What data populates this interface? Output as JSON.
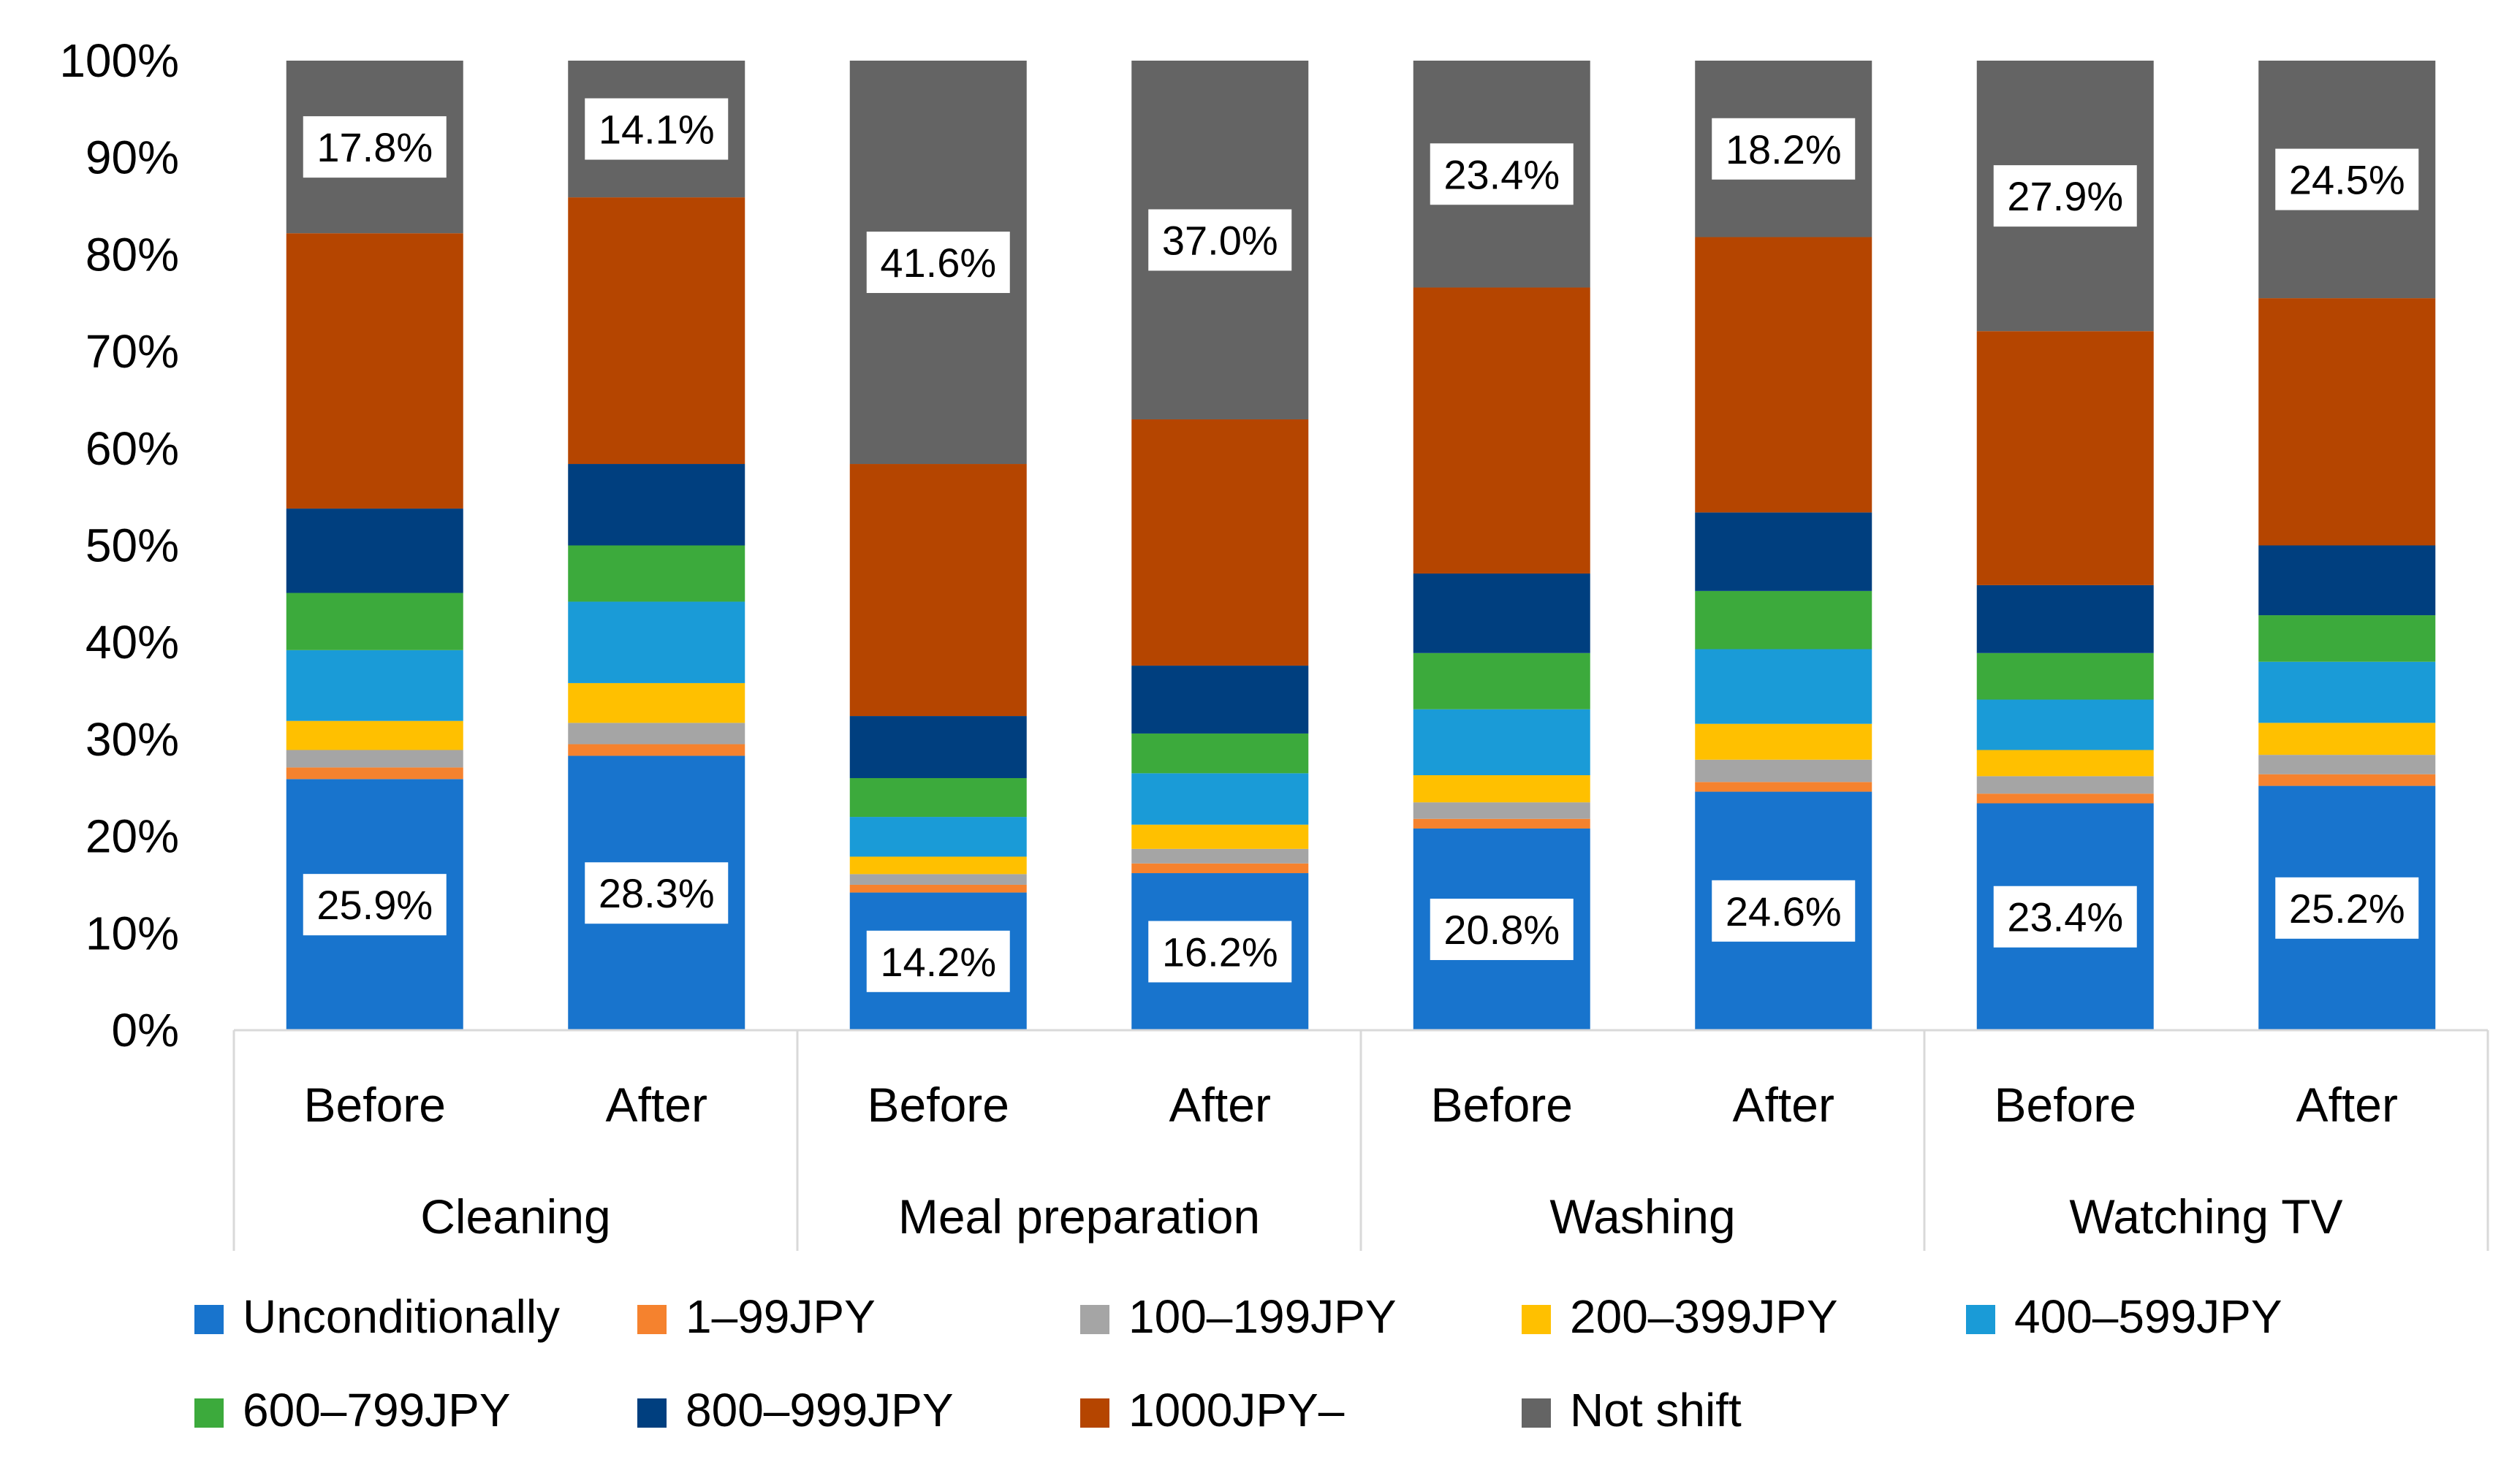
{
  "chart_data": {
    "type": "bar",
    "stacked": true,
    "normalized": true,
    "title": "",
    "xlabel": "",
    "ylabel": "",
    "ylim": [
      0,
      100
    ],
    "yticks": [
      "0%",
      "10%",
      "20%",
      "30%",
      "40%",
      "50%",
      "60%",
      "70%",
      "80%",
      "90%",
      "100%"
    ],
    "groups": [
      {
        "label": "Cleaning",
        "categories": [
          "Before",
          "After"
        ]
      },
      {
        "label": "Meal preparation",
        "categories": [
          "Before",
          "After"
        ]
      },
      {
        "label": "Washing",
        "categories": [
          "Before",
          "After"
        ]
      },
      {
        "label": "Watching TV",
        "categories": [
          "Before",
          "After"
        ]
      }
    ],
    "categories": [
      "Before",
      "After",
      "Before",
      "After",
      "Before",
      "After",
      "Before",
      "After"
    ],
    "series": [
      {
        "name": "Unconditionally",
        "color": "#1874CD",
        "values": [
          25.9,
          28.3,
          14.2,
          16.2,
          20.8,
          24.6,
          23.4,
          25.2
        ]
      },
      {
        "name": "1–99JPY",
        "color": "#F5822E",
        "values": [
          1.2,
          1.2,
          0.8,
          1.0,
          1.0,
          1.0,
          1.0,
          1.2
        ]
      },
      {
        "name": "100–199JPY",
        "color": "#A5A5A5",
        "values": [
          1.8,
          2.2,
          1.1,
          1.5,
          1.7,
          2.3,
          1.8,
          2.0
        ]
      },
      {
        "name": "200–399JPY",
        "color": "#FFC000",
        "values": [
          3.0,
          4.1,
          1.8,
          2.5,
          2.8,
          3.7,
          2.7,
          3.3
        ]
      },
      {
        "name": "400–599JPY",
        "color": "#1A9BD7",
        "values": [
          7.3,
          8.4,
          4.1,
          5.3,
          6.8,
          7.7,
          5.2,
          6.3
        ]
      },
      {
        "name": "600–799JPY",
        "color": "#3CAA3C",
        "values": [
          5.9,
          5.8,
          4.0,
          4.1,
          5.8,
          6.0,
          4.8,
          4.8
        ]
      },
      {
        "name": "800–999JPY",
        "color": "#003F7F",
        "values": [
          8.7,
          8.4,
          6.4,
          7.0,
          8.2,
          8.1,
          7.0,
          7.2
        ]
      },
      {
        "name": "1000JPY–",
        "color": "#B54500",
        "values": [
          28.4,
          27.5,
          26.0,
          25.4,
          29.5,
          28.4,
          26.2,
          25.5
        ]
      },
      {
        "name": "Not shift",
        "color": "#646464",
        "values": [
          17.8,
          14.1,
          41.6,
          37.0,
          23.4,
          18.2,
          27.9,
          24.5
        ]
      }
    ],
    "data_labels": {
      "Unconditionally": [
        "25.9%",
        "28.3%",
        "14.2%",
        "16.2%",
        "20.8%",
        "24.6%",
        "23.4%",
        "25.2%"
      ],
      "Not shift": [
        "17.8%",
        "14.1%",
        "41.6%",
        "37.0%",
        "23.4%",
        "18.2%",
        "27.9%",
        "24.5%"
      ]
    },
    "grid": false,
    "legend_position": "bottom"
  }
}
